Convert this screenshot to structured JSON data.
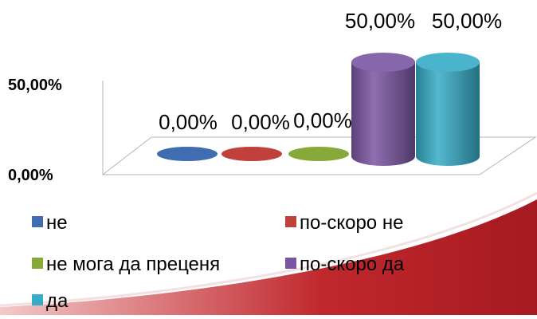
{
  "chart_data": {
    "type": "bar",
    "categories": [
      "не",
      "по-скоро не",
      "не мога да преценя",
      "по-скоро да",
      "да"
    ],
    "values": [
      0,
      0,
      0,
      50,
      50
    ],
    "data_labels": [
      "0,00%",
      "0,00%",
      "0,00%",
      "50,00%",
      "50,00%"
    ],
    "yticks": [
      "50,00%",
      "0,00%"
    ],
    "ylim": [
      0,
      50
    ],
    "style": "3d-cylinder",
    "grid": false,
    "legend_position": "bottom",
    "colors": [
      "#3F6DB0",
      "#C0413C",
      "#86A93A",
      "#7A56A2",
      "#36ACC6"
    ]
  },
  "decoration": {
    "swoosh_color": "#C0282D"
  }
}
